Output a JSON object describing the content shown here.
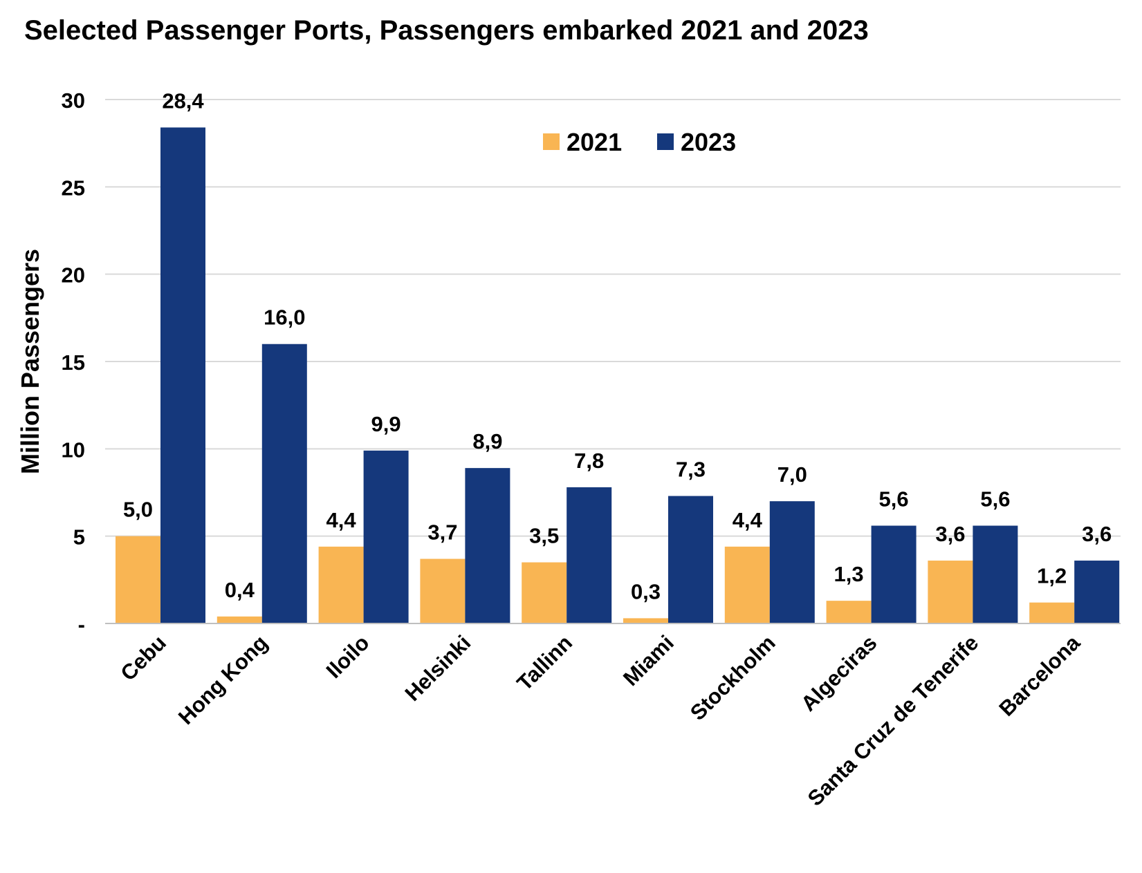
{
  "chart_data": {
    "type": "bar",
    "title": "Selected Passenger Ports, Passengers embarked 2021 and 2023",
    "xlabel": "",
    "ylabel": "Million Passengers",
    "ylim": [
      0,
      30
    ],
    "yticks": [
      0,
      5,
      10,
      15,
      20,
      25,
      30
    ],
    "ytick_labels": [
      "-",
      "5",
      "10",
      "15",
      "20",
      "25",
      "30"
    ],
    "grid": true,
    "legend_position": "top-center",
    "categories": [
      "Cebu",
      "Hong Kong",
      "Iloilo",
      "Helsinki",
      "Tallinn",
      "Miami",
      "Stockholm",
      "Algeciras",
      "Santa Cruz de Tenerife",
      "Barcelona"
    ],
    "series": [
      {
        "name": "2021",
        "color": "#F9B553",
        "values": [
          5.0,
          0.4,
          4.4,
          3.7,
          3.5,
          0.3,
          4.4,
          1.3,
          3.6,
          1.2
        ],
        "labels": [
          "5,0",
          "0,4",
          "4,4",
          "3,7",
          "3,5",
          "0,3",
          "4,4",
          "1,3",
          "3,6",
          "1,2"
        ]
      },
      {
        "name": "2023",
        "color": "#15387C",
        "values": [
          28.4,
          16.0,
          9.9,
          8.9,
          7.8,
          7.3,
          7.0,
          5.6,
          5.6,
          3.6
        ],
        "labels": [
          "28,4",
          "16,0",
          "9,9",
          "8,9",
          "7,8",
          "7,3",
          "7,0",
          "5,6",
          "5,6",
          "3,6"
        ]
      }
    ]
  }
}
